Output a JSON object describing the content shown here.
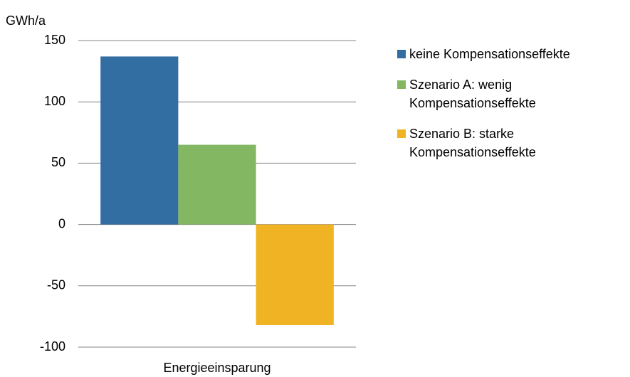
{
  "chart_data": {
    "type": "bar",
    "y_axis_label": "GWh/a",
    "categories": [
      "Energieeinsparung"
    ],
    "series": [
      {
        "name": "keine Kompensationseffekte",
        "color": "#336ea3",
        "values": [
          137
        ]
      },
      {
        "name": "Szenario A: wenig Kompensationseffekte",
        "color": "#84b761",
        "values": [
          65
        ]
      },
      {
        "name": "Szenario B: starke Kompensationseffekte",
        "color": "#f0b323",
        "values": [
          -82
        ]
      }
    ],
    "ylim": [
      -100,
      150
    ],
    "yticks": [
      -100,
      -50,
      0,
      50,
      100,
      150
    ],
    "grid": true,
    "legend": "right"
  }
}
